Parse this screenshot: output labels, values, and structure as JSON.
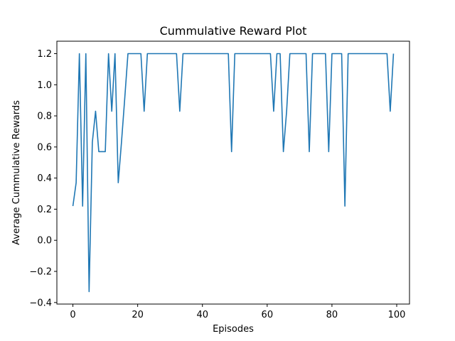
{
  "chart_data": {
    "type": "line",
    "title": "Cummulative Reward Plot",
    "xlabel": "Episodes",
    "ylabel": "Average Cummulative Rewards",
    "xlim": [
      -4.95,
      103.95
    ],
    "ylim": [
      -0.41,
      1.28
    ],
    "xticks": [
      0,
      20,
      40,
      60,
      80,
      100
    ],
    "xtick_labels": [
      "0",
      "20",
      "40",
      "60",
      "80",
      "100"
    ],
    "yticks": [
      -0.4,
      -0.2,
      0.0,
      0.2,
      0.4,
      0.6,
      0.8,
      1.0,
      1.2
    ],
    "ytick_labels": [
      "−0.4",
      "−0.2",
      "0.0",
      "0.2",
      "0.4",
      "0.6",
      "0.8",
      "1.0",
      "1.2"
    ],
    "grid": false,
    "series_color": "#1f77b4",
    "x": [
      0,
      1,
      2,
      3,
      4,
      5,
      6,
      7,
      8,
      9,
      10,
      11,
      12,
      13,
      14,
      15,
      16,
      17,
      18,
      19,
      20,
      21,
      22,
      23,
      24,
      25,
      26,
      27,
      28,
      29,
      30,
      31,
      32,
      33,
      34,
      35,
      36,
      37,
      38,
      39,
      40,
      41,
      42,
      43,
      44,
      45,
      46,
      47,
      48,
      49,
      50,
      51,
      52,
      53,
      54,
      55,
      56,
      57,
      58,
      59,
      60,
      61,
      62,
      63,
      64,
      65,
      66,
      67,
      68,
      69,
      70,
      71,
      72,
      73,
      74,
      75,
      76,
      77,
      78,
      79,
      80,
      81,
      82,
      83,
      84,
      85,
      86,
      87,
      88,
      89,
      90,
      91,
      92,
      93,
      94,
      95,
      96,
      97,
      98,
      99
    ],
    "y": [
      0.22,
      0.37,
      1.2,
      0.22,
      1.2,
      -0.33,
      0.63,
      0.83,
      0.57,
      0.57,
      0.57,
      1.2,
      0.83,
      1.2,
      0.37,
      0.63,
      0.91,
      1.2,
      1.2,
      1.2,
      1.2,
      1.2,
      0.83,
      1.2,
      1.2,
      1.2,
      1.2,
      1.2,
      1.2,
      1.2,
      1.2,
      1.2,
      1.2,
      0.83,
      1.2,
      1.2,
      1.2,
      1.2,
      1.2,
      1.2,
      1.2,
      1.2,
      1.2,
      1.2,
      1.2,
      1.2,
      1.2,
      1.2,
      1.2,
      0.57,
      1.2,
      1.2,
      1.2,
      1.2,
      1.2,
      1.2,
      1.2,
      1.2,
      1.2,
      1.2,
      1.2,
      1.2,
      0.83,
      1.2,
      1.2,
      0.57,
      0.83,
      1.2,
      1.2,
      1.2,
      1.2,
      1.2,
      1.2,
      0.57,
      1.2,
      1.2,
      1.2,
      1.2,
      1.2,
      0.57,
      1.2,
      1.2,
      1.2,
      1.2,
      0.22,
      1.2,
      1.2,
      1.2,
      1.2,
      1.2,
      1.2,
      1.2,
      1.2,
      1.2,
      1.2,
      1.2,
      1.2,
      1.2,
      0.83,
      1.2
    ]
  }
}
